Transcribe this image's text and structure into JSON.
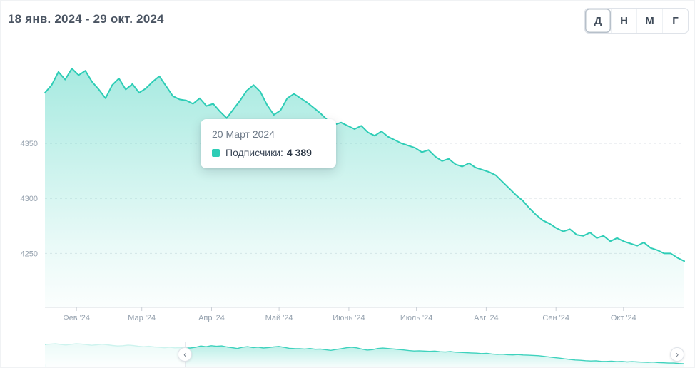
{
  "header": {
    "date_range": "18 янв. 2024 - 29 окт. 2024"
  },
  "range_buttons": [
    {
      "label": "Д",
      "active": true
    },
    {
      "label": "Н",
      "active": false
    },
    {
      "label": "М",
      "active": false
    },
    {
      "label": "Г",
      "active": false
    }
  ],
  "tooltip": {
    "title": "20 Март 2024",
    "series_label": "Подписчики:",
    "value": "4 389"
  },
  "colors": {
    "accent": "#2ecdb6",
    "axis_text": "#95a1ae",
    "header_text": "#4a5462"
  },
  "chart_data": {
    "type": "area",
    "title": "",
    "xlabel": "",
    "ylabel": "",
    "series": [
      {
        "name": "Подписчики",
        "values": [
          4396,
          4403,
          4415,
          4408,
          4418,
          4412,
          4416,
          4406,
          4399,
          4391,
          4403,
          4409,
          4399,
          4404,
          4396,
          4400,
          4406,
          4411,
          4402,
          4393,
          4390,
          4389,
          4386,
          4391,
          4384,
          4386,
          4379,
          4373,
          4381,
          4389,
          4398,
          4403,
          4397,
          4385,
          4376,
          4380,
          4391,
          4395,
          4391,
          4387,
          4382,
          4377,
          4371,
          4367,
          4369,
          4366,
          4363,
          4366,
          4360,
          4357,
          4361,
          4356,
          4353,
          4350,
          4348,
          4346,
          4342,
          4344,
          4338,
          4334,
          4336,
          4331,
          4329,
          4332,
          4328,
          4326,
          4324,
          4321,
          4315,
          4309,
          4303,
          4298,
          4291,
          4285,
          4280,
          4277,
          4273,
          4270,
          4272,
          4267,
          4266,
          4269,
          4264,
          4266,
          4261,
          4264,
          4261,
          4259,
          4257,
          4260,
          4255,
          4253,
          4250,
          4250,
          4246,
          4243
        ]
      }
    ],
    "x_range": {
      "start": "18 янв. 2024",
      "end": "29 окт. 2024",
      "days": 284
    },
    "y_ticks": [
      4350,
      4300,
      4250
    ],
    "x_tick_labels": [
      "Фев '24",
      "Мар '24",
      "Апр '24",
      "Май '24",
      "Июнь '24",
      "Июль '24",
      "Авг '24",
      "Сен '24",
      "Окт '24"
    ],
    "x_tick_days": [
      14,
      43,
      74,
      104,
      135,
      165,
      196,
      227,
      257
    ],
    "ylim": [
      4201,
      4433
    ],
    "grid": "horizontal-dashed",
    "legend_position": "none",
    "highlighted_point": {
      "date": "20 Март 2024",
      "value": 4389
    }
  },
  "navigator": {
    "left_arrow": "‹",
    "right_arrow": "›",
    "selection_start_pct": 21.9,
    "selection_end_pct": 98.9,
    "prefix_values": [
      4428,
      4433,
      4437,
      4430,
      4425,
      4431,
      4438,
      4434,
      4428,
      4422,
      4427,
      4432,
      4427,
      4420,
      4415,
      4418,
      4424,
      4419,
      4412,
      4408,
      4412,
      4406,
      4402,
      4398,
      4403,
      4397,
      4399,
      4396
    ]
  }
}
